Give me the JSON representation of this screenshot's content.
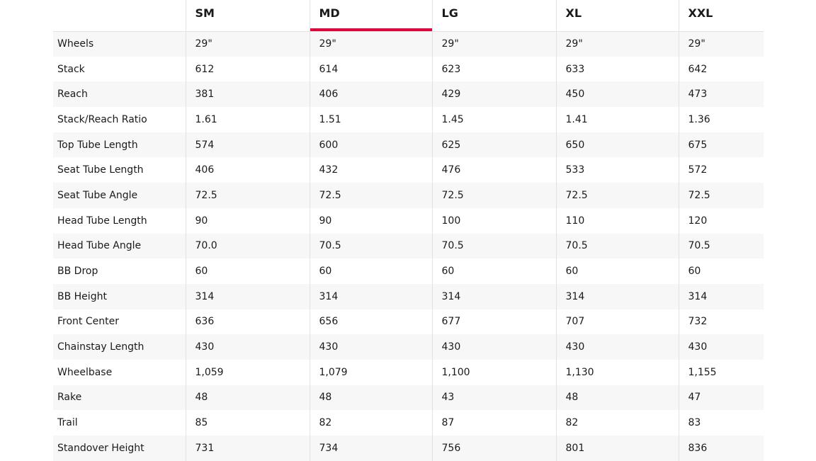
{
  "accent_color": "#e4003a",
  "active_size": "MD",
  "columns": [
    "",
    "SM",
    "MD",
    "LG",
    "XL",
    "XXL"
  ],
  "rows": [
    {
      "label": "Wheels",
      "values": [
        "29\"",
        "29\"",
        "29\"",
        "29\"",
        "29\""
      ]
    },
    {
      "label": "Stack",
      "values": [
        "612",
        "614",
        "623",
        "633",
        "642"
      ]
    },
    {
      "label": "Reach",
      "values": [
        "381",
        "406",
        "429",
        "450",
        "473"
      ]
    },
    {
      "label": "Stack/Reach Ratio",
      "values": [
        "1.61",
        "1.51",
        "1.45",
        "1.41",
        "1.36"
      ]
    },
    {
      "label": "Top Tube Length",
      "values": [
        "574",
        "600",
        "625",
        "650",
        "675"
      ]
    },
    {
      "label": "Seat Tube Length",
      "values": [
        "406",
        "432",
        "476",
        "533",
        "572"
      ]
    },
    {
      "label": "Seat Tube Angle",
      "values": [
        "72.5",
        "72.5",
        "72.5",
        "72.5",
        "72.5"
      ]
    },
    {
      "label": "Head Tube Length",
      "values": [
        "90",
        "90",
        "100",
        "110",
        "120"
      ]
    },
    {
      "label": "Head Tube Angle",
      "values": [
        "70.0",
        "70.5",
        "70.5",
        "70.5",
        "70.5"
      ]
    },
    {
      "label": "BB Drop",
      "values": [
        "60",
        "60",
        "60",
        "60",
        "60"
      ]
    },
    {
      "label": "BB Height",
      "values": [
        "314",
        "314",
        "314",
        "314",
        "314"
      ]
    },
    {
      "label": "Front Center",
      "values": [
        "636",
        "656",
        "677",
        "707",
        "732"
      ]
    },
    {
      "label": "Chainstay Length",
      "values": [
        "430",
        "430",
        "430",
        "430",
        "430"
      ]
    },
    {
      "label": "Wheelbase",
      "values": [
        "1,059",
        "1,079",
        "1,100",
        "1,130",
        "1,155"
      ]
    },
    {
      "label": "Rake",
      "values": [
        "48",
        "48",
        "43",
        "48",
        "47"
      ]
    },
    {
      "label": "Trail",
      "values": [
        "85",
        "82",
        "87",
        "82",
        "83"
      ]
    },
    {
      "label": "Standover Height",
      "values": [
        "731",
        "734",
        "756",
        "801",
        "836"
      ]
    }
  ]
}
